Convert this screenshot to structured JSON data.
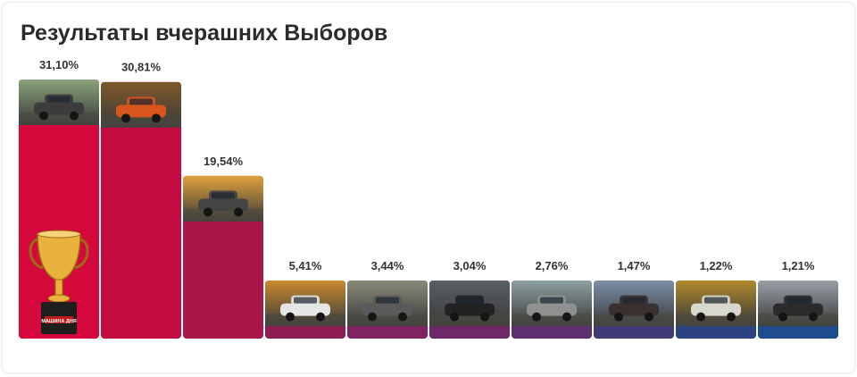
{
  "title": "Результаты вчерашних Выборов",
  "chart_data": {
    "type": "bar",
    "title": "Результаты вчерашних Выборов",
    "values": [
      31.1,
      30.81,
      19.54,
      5.41,
      3.44,
      3.04,
      2.76,
      1.47,
      1.22,
      1.21
    ],
    "labels": [
      "31,10%",
      "30,81%",
      "19,54%",
      "5,41%",
      "3,44%",
      "3,04%",
      "2,76%",
      "1,47%",
      "1,22%",
      "1,21%"
    ],
    "colors": [
      "#d4083a",
      "#c20c42",
      "#a8164a",
      "#8e1d54",
      "#7f2460",
      "#6e2868",
      "#5d2f6e",
      "#403b76",
      "#2d4381",
      "#1e4c8e"
    ],
    "thumbnail_tints": [
      [
        "#8aa27a",
        "#3c3c3c"
      ],
      [
        "#7f5a2a",
        "#d8551e"
      ],
      [
        "#e1a23b",
        "#444444"
      ],
      [
        "#c98a2e",
        "#e6e6e6"
      ],
      [
        "#8a8a7a",
        "#5a5a5a"
      ],
      [
        "#5a5f66",
        "#222222"
      ],
      [
        "#8fa0a0",
        "#909090"
      ],
      [
        "#7d8fa8",
        "#3a3030"
      ],
      [
        "#b08a2c",
        "#d8d8cf"
      ],
      [
        "#9aa0a8",
        "#2b2b2b"
      ]
    ],
    "ylim": [
      0,
      31.1
    ]
  },
  "trophy": {
    "plate_text": "МАШИНА ДНЯ",
    "colors": {
      "gold": "#e8b23c",
      "gold_dark": "#9c6a14",
      "base": "#1e1e1e"
    }
  }
}
